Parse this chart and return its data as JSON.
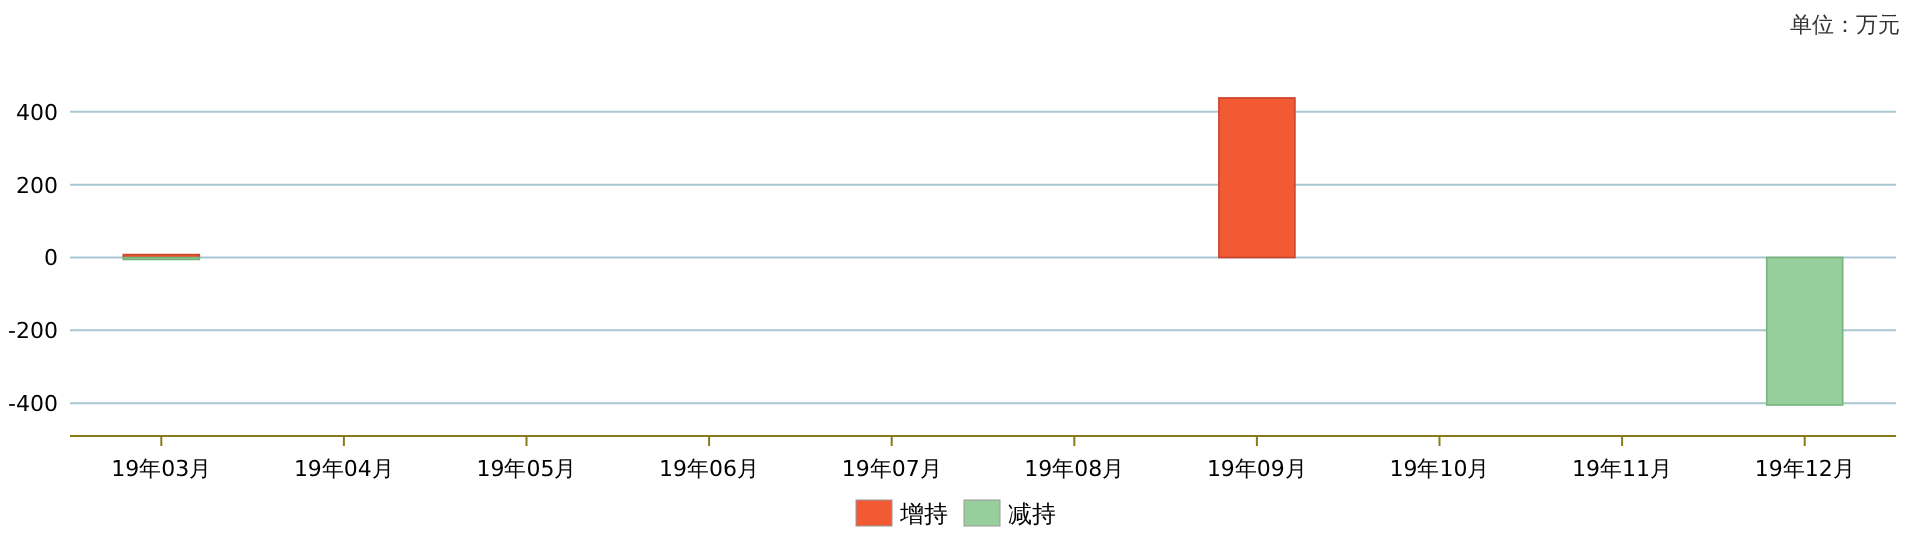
{
  "chart_data": {
    "type": "bar",
    "categories": [
      "19年03月",
      "19年04月",
      "19年05月",
      "19年06月",
      "19年07月",
      "19年08月",
      "19年09月",
      "19年10月",
      "19年11月",
      "19年12月"
    ],
    "series": [
      {
        "name": "增持",
        "color": "#f25a33",
        "values": [
          8,
          null,
          null,
          null,
          null,
          null,
          438,
          null,
          null,
          null
        ]
      },
      {
        "name": "减持",
        "color": "#97cf9c",
        "values": [
          -4,
          null,
          null,
          null,
          null,
          null,
          null,
          null,
          null,
          -405
        ]
      }
    ],
    "ylim": [
      -490,
      440
    ],
    "yticks": [
      -400,
      -200,
      0,
      200,
      400
    ],
    "grid": "y",
    "legend": "bottom",
    "annotations": [
      "单位：万元"
    ]
  }
}
